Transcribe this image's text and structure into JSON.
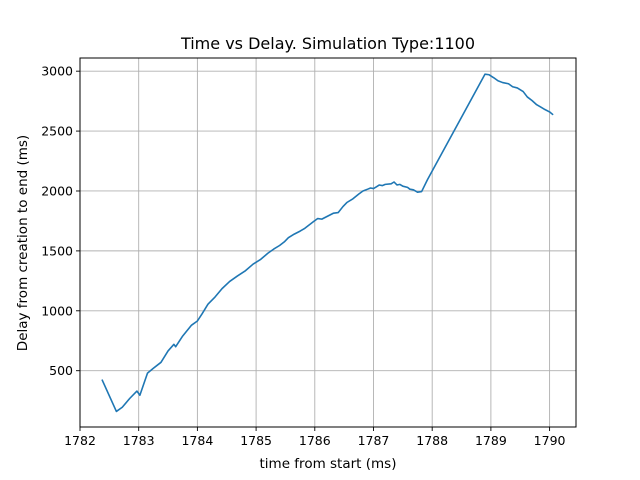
{
  "chart_data": {
    "type": "line",
    "title": "Time vs Delay. Simulation Type:1100",
    "xlabel": "time from start (ms)",
    "ylabel": "Delay from creation to end (ms)",
    "xlim": [
      1782,
      1790.45
    ],
    "ylim": [
      30,
      3110
    ],
    "xticks": [
      1782,
      1783,
      1784,
      1785,
      1786,
      1787,
      1788,
      1789,
      1790
    ],
    "yticks": [
      500,
      1000,
      1500,
      2000,
      2500,
      3000
    ],
    "grid": true,
    "color": "#1f77b4",
    "series": [
      {
        "x": [
          1782.38,
          1782.62,
          1782.72,
          1782.85,
          1782.97,
          1783.02,
          1783.15,
          1783.25,
          1783.38,
          1783.5,
          1783.6,
          1783.63,
          1783.75,
          1783.9,
          1784.0,
          1784.08,
          1784.18,
          1784.3,
          1784.42,
          1784.55,
          1784.68,
          1784.82,
          1784.95,
          1785.08,
          1785.2,
          1785.3,
          1785.4,
          1785.48,
          1785.55,
          1785.65,
          1785.75,
          1785.82,
          1785.9,
          1785.98,
          1786.05,
          1786.12,
          1786.22,
          1786.32,
          1786.4,
          1786.48,
          1786.55,
          1786.65,
          1786.75,
          1786.82,
          1786.9,
          1786.95,
          1787.0,
          1787.05,
          1787.1,
          1787.15,
          1787.2,
          1787.3,
          1787.35,
          1787.4,
          1787.45,
          1787.5,
          1787.58,
          1787.62,
          1787.68,
          1787.75,
          1787.82,
          1787.92,
          1788.9,
          1788.97,
          1789.05,
          1789.12,
          1789.2,
          1789.3,
          1789.37,
          1789.45,
          1789.55,
          1789.62,
          1789.7,
          1789.78,
          1789.85,
          1789.92,
          1790.0,
          1790.05
        ],
        "y": [
          420,
          160,
          195,
          270,
          330,
          295,
          480,
          520,
          570,
          665,
          720,
          700,
          790,
          880,
          915,
          975,
          1055,
          1115,
          1185,
          1245,
          1290,
          1335,
          1390,
          1430,
          1480,
          1515,
          1545,
          1575,
          1610,
          1640,
          1665,
          1685,
          1715,
          1745,
          1770,
          1765,
          1790,
          1815,
          1820,
          1870,
          1905,
          1935,
          1975,
          2000,
          2015,
          2025,
          2020,
          2035,
          2050,
          2045,
          2055,
          2060,
          2075,
          2050,
          2055,
          2040,
          2030,
          2015,
          2010,
          1990,
          1995,
          2095,
          2975,
          2970,
          2945,
          2920,
          2905,
          2895,
          2870,
          2860,
          2830,
          2785,
          2755,
          2720,
          2700,
          2680,
          2660,
          2640
        ]
      }
    ]
  }
}
